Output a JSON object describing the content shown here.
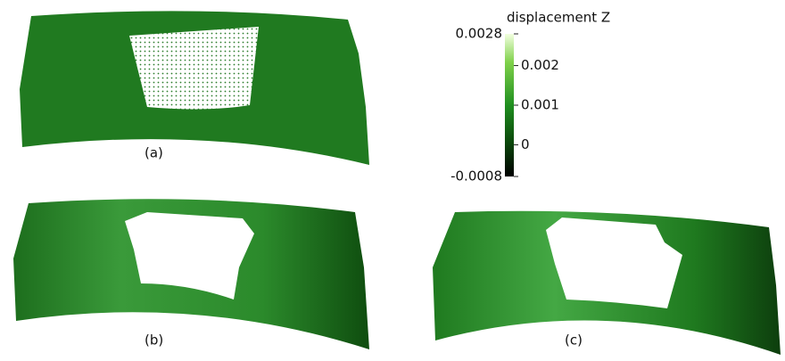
{
  "panels": [
    {
      "label": "(a)"
    },
    {
      "label": "(b)"
    },
    {
      "label": "(c)"
    }
  ],
  "colorbar": {
    "title": "displacement Z",
    "lim": [
      -0.0008,
      0.0028
    ],
    "ticks": [
      -0.0008,
      0,
      0.001,
      0.002,
      0.0028
    ]
  }
}
